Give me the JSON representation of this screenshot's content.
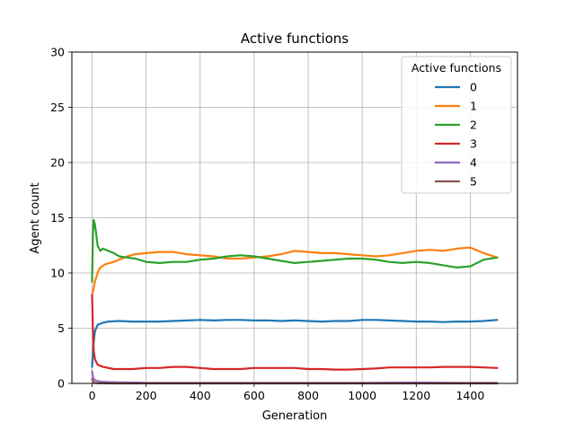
{
  "chart_data": {
    "type": "line",
    "title": "Active functions",
    "xlabel": "Generation",
    "ylabel": "Agent count",
    "xlim": [
      -75,
      1575
    ],
    "ylim": [
      0,
      30
    ],
    "xticks": [
      0,
      200,
      400,
      600,
      800,
      1000,
      1200,
      1400
    ],
    "yticks": [
      0,
      5,
      10,
      15,
      20,
      25,
      30
    ],
    "grid": true,
    "legend": {
      "title": "Active functions",
      "placement": "top-right"
    },
    "series": [
      {
        "name": "0",
        "color": "#1f77b4",
        "x": [
          0,
          5,
          10,
          20,
          40,
          60,
          100,
          150,
          200,
          250,
          300,
          350,
          400,
          450,
          500,
          550,
          600,
          650,
          700,
          750,
          800,
          850,
          900,
          950,
          1000,
          1050,
          1100,
          1150,
          1200,
          1250,
          1300,
          1350,
          1400,
          1450,
          1500
        ],
        "y": [
          1.5,
          3.5,
          4.7,
          5.3,
          5.5,
          5.6,
          5.65,
          5.6,
          5.6,
          5.6,
          5.65,
          5.7,
          5.75,
          5.7,
          5.75,
          5.75,
          5.7,
          5.7,
          5.65,
          5.7,
          5.65,
          5.6,
          5.65,
          5.65,
          5.75,
          5.75,
          5.7,
          5.65,
          5.6,
          5.6,
          5.55,
          5.6,
          5.6,
          5.65,
          5.75
        ]
      },
      {
        "name": "1",
        "color": "#ff7f0e",
        "x": [
          0,
          5,
          10,
          20,
          30,
          50,
          80,
          100,
          130,
          160,
          200,
          250,
          300,
          350,
          400,
          450,
          500,
          550,
          600,
          650,
          700,
          750,
          800,
          850,
          900,
          950,
          1000,
          1050,
          1100,
          1150,
          1200,
          1250,
          1300,
          1350,
          1400,
          1450,
          1500
        ],
        "y": [
          8.0,
          8.5,
          9.2,
          10.0,
          10.5,
          10.8,
          11.0,
          11.2,
          11.5,
          11.7,
          11.8,
          11.9,
          11.9,
          11.7,
          11.6,
          11.5,
          11.3,
          11.3,
          11.4,
          11.5,
          11.7,
          12.0,
          11.9,
          11.8,
          11.8,
          11.7,
          11.6,
          11.5,
          11.6,
          11.8,
          12.0,
          12.1,
          12.0,
          12.2,
          12.3,
          11.8,
          11.4
        ]
      },
      {
        "name": "2",
        "color": "#2ca02c",
        "x": [
          0,
          3,
          6,
          10,
          15,
          20,
          30,
          40,
          60,
          80,
          100,
          130,
          160,
          200,
          250,
          300,
          350,
          400,
          450,
          500,
          550,
          600,
          650,
          700,
          750,
          800,
          850,
          900,
          950,
          1000,
          1050,
          1100,
          1150,
          1200,
          1250,
          1300,
          1350,
          1400,
          1450,
          1500
        ],
        "y": [
          9.2,
          13.5,
          14.8,
          14.4,
          13.5,
          12.5,
          12.0,
          12.2,
          12.0,
          11.8,
          11.5,
          11.4,
          11.3,
          11.0,
          10.9,
          11.0,
          11.0,
          11.2,
          11.3,
          11.5,
          11.6,
          11.5,
          11.3,
          11.1,
          10.9,
          11.0,
          11.1,
          11.2,
          11.3,
          11.3,
          11.2,
          11.0,
          10.9,
          11.0,
          10.9,
          10.7,
          10.5,
          10.6,
          11.2,
          11.4
        ]
      },
      {
        "name": "3",
        "color": "#d62728",
        "x": [
          0,
          3,
          6,
          10,
          20,
          40,
          60,
          80,
          100,
          150,
          200,
          250,
          300,
          350,
          400,
          450,
          500,
          550,
          600,
          650,
          700,
          750,
          800,
          850,
          900,
          950,
          1000,
          1050,
          1100,
          1150,
          1200,
          1250,
          1300,
          1350,
          1400,
          1450,
          1500
        ],
        "y": [
          8.0,
          5.0,
          3.0,
          2.2,
          1.7,
          1.5,
          1.4,
          1.3,
          1.3,
          1.3,
          1.4,
          1.4,
          1.5,
          1.5,
          1.4,
          1.3,
          1.3,
          1.3,
          1.4,
          1.4,
          1.4,
          1.4,
          1.3,
          1.3,
          1.25,
          1.25,
          1.3,
          1.35,
          1.45,
          1.45,
          1.45,
          1.45,
          1.5,
          1.5,
          1.5,
          1.45,
          1.4
        ]
      },
      {
        "name": "4",
        "color": "#9467bd",
        "x": [
          0,
          3,
          6,
          10,
          20,
          40,
          60,
          100,
          150,
          200,
          400,
          600,
          800,
          1000,
          1200,
          1400,
          1500
        ],
        "y": [
          1.1,
          0.6,
          0.4,
          0.3,
          0.2,
          0.15,
          0.12,
          0.1,
          0.08,
          0.05,
          0.05,
          0.05,
          0.05,
          0.05,
          0.08,
          0.05,
          0.05
        ]
      },
      {
        "name": "5",
        "color": "#8c564b",
        "x": [
          0,
          3,
          6,
          10,
          20,
          50,
          100,
          200,
          400,
          600,
          800,
          1000,
          1200,
          1400,
          1500
        ],
        "y": [
          0.4,
          0.2,
          0.1,
          0.05,
          0.02,
          0.01,
          0.0,
          0.0,
          0.0,
          0.0,
          0.0,
          0.0,
          0.0,
          0.0,
          0.0
        ]
      }
    ]
  }
}
